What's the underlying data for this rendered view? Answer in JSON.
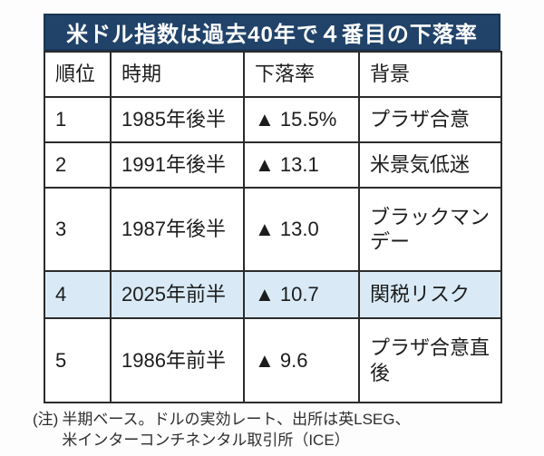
{
  "title": "米ドル指数は過去40年で４番目の下落率",
  "colors": {
    "banner_bg": "#21436a",
    "banner_border": "#1a3554",
    "banner_text": "#ffffff",
    "highlight_row_bg": "#d9eaf6",
    "table_border": "#2b2b2b",
    "text": "#1c1c1c"
  },
  "table": {
    "headers": [
      "順位",
      "時期",
      "下落率",
      "背景"
    ],
    "rows": [
      {
        "rank": "1",
        "period": "1985年後半",
        "decline": "▲ 15.5%",
        "background": "プラザ合意",
        "highlighted": false
      },
      {
        "rank": "2",
        "period": "1991年後半",
        "decline": "▲ 13.1",
        "background": "米景気低迷",
        "highlighted": false
      },
      {
        "rank": "3",
        "period": "1987年後半",
        "decline": "▲ 13.0",
        "background": "ブラックマンデー",
        "highlighted": false
      },
      {
        "rank": "4",
        "period": "2025年前半",
        "decline": "▲ 10.7",
        "background": "関税リスク",
        "highlighted": true
      },
      {
        "rank": "5",
        "period": "1986年前半",
        "decline": "▲ 9.6",
        "background": "プラザ合意直後",
        "highlighted": false
      }
    ]
  },
  "note": {
    "label": "(注)",
    "line1": "半期ベース。ドルの実効レート、出所は英LSEG、",
    "line2": "米インターコンチネンタル取引所（ICE）"
  },
  "chart_data": {
    "type": "table",
    "title": "米ドル指数は過去40年で４番目の下落率",
    "columns": [
      "順位",
      "時期",
      "下落率",
      "背景"
    ],
    "rows": [
      [
        "1",
        "1985年後半",
        "▲ 15.5%",
        "プラザ合意"
      ],
      [
        "2",
        "1991年後半",
        "▲ 13.1",
        "米景気低迷"
      ],
      [
        "3",
        "1987年後半",
        "▲ 13.0",
        "ブラックマンデー"
      ],
      [
        "4",
        "2025年前半",
        "▲ 10.7",
        "関税リスク"
      ],
      [
        "5",
        "1986年前半",
        "▲ 9.6",
        "プラザ合意直後"
      ]
    ],
    "highlighted_row_rank": "4",
    "decline_values_pct": [
      -15.5,
      -13.1,
      -13.0,
      -10.7,
      -9.6
    ],
    "note": "(注) 半期ベース。ドルの実効レート、出所は英LSEG、米インターコンチネンタル取引所（ICE）"
  }
}
